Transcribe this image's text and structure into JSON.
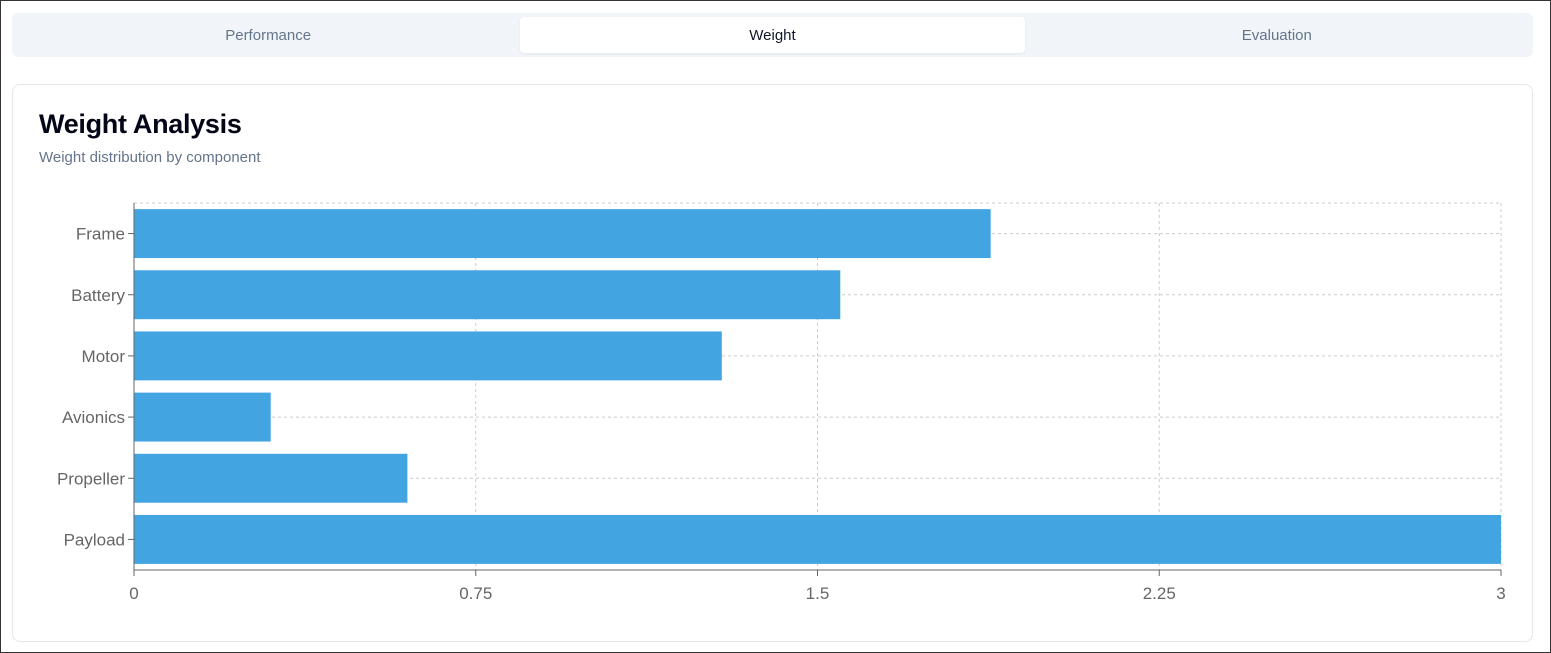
{
  "tabs": [
    {
      "label": "Performance",
      "active": false
    },
    {
      "label": "Weight",
      "active": true
    },
    {
      "label": "Evaluation",
      "active": false
    }
  ],
  "card": {
    "title": "Weight Analysis",
    "subtitle": "Weight distribution by component"
  },
  "colors": {
    "bar": "#42a5e2",
    "grid": "#cccccc",
    "axis": "#666666"
  },
  "chart_data": {
    "type": "bar",
    "orientation": "horizontal",
    "title": "Weight Analysis",
    "subtitle": "Weight distribution by component",
    "categories": [
      "Frame",
      "Battery",
      "Motor",
      "Avionics",
      "Propeller",
      "Payload"
    ],
    "values": [
      1.88,
      1.55,
      1.29,
      0.3,
      0.6,
      3.0
    ],
    "xlabel": "",
    "ylabel": "",
    "xlim": [
      0,
      3
    ],
    "xticks": [
      "0",
      "0.75",
      "1.5",
      "2.25",
      "3"
    ],
    "grid": true,
    "legend": null
  }
}
